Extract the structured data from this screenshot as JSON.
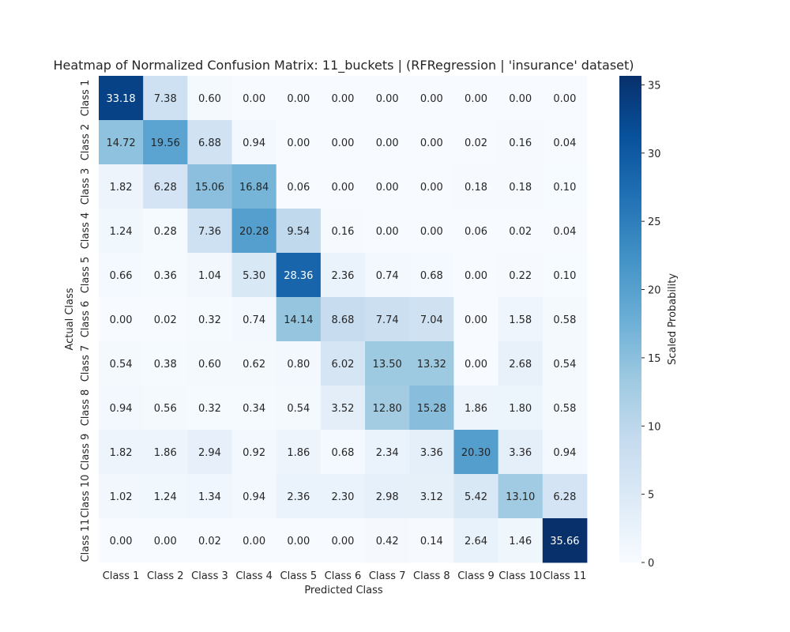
{
  "chart_data": {
    "type": "heatmap",
    "title": "Heatmap of Normalized Confusion Matrix: 11_buckets | (RFRegression | 'insurance' dataset)",
    "xlabel": "Predicted Class",
    "ylabel": "Actual Class",
    "colorbar_label": "Scaled Probability",
    "colorbar_ticks": [
      0,
      5,
      10,
      15,
      20,
      25,
      30,
      35
    ],
    "vmin": 0,
    "vmax": 35.66,
    "colormap": "Blues",
    "colormap_stops": [
      "#f7fbff",
      "#deebf7",
      "#c6dbef",
      "#9ecae1",
      "#6baed6",
      "#4292c6",
      "#2171b5",
      "#08519c",
      "#08306b"
    ],
    "x_categories": [
      "Class 1",
      "Class 2",
      "Class 3",
      "Class 4",
      "Class 5",
      "Class 6",
      "Class 7",
      "Class 8",
      "Class 9",
      "Class 10",
      "Class 11"
    ],
    "y_categories": [
      "Class 1",
      "Class 2",
      "Class 3",
      "Class 4",
      "Class 5",
      "Class 6",
      "Class 7",
      "Class 8",
      "Class 9",
      "Class 10",
      "Class 11"
    ],
    "values": [
      [
        33.18,
        7.38,
        0.6,
        0.0,
        0.0,
        0.0,
        0.0,
        0.0,
        0.0,
        0.0,
        0.0
      ],
      [
        14.72,
        19.56,
        6.88,
        0.94,
        0.0,
        0.0,
        0.0,
        0.0,
        0.02,
        0.16,
        0.04
      ],
      [
        1.82,
        6.28,
        15.06,
        16.84,
        0.06,
        0.0,
        0.0,
        0.0,
        0.18,
        0.18,
        0.1
      ],
      [
        1.24,
        0.28,
        7.36,
        20.28,
        9.54,
        0.16,
        0.0,
        0.0,
        0.06,
        0.02,
        0.04
      ],
      [
        0.66,
        0.36,
        1.04,
        5.3,
        28.36,
        2.36,
        0.74,
        0.68,
        0.0,
        0.22,
        0.1
      ],
      [
        0.0,
        0.02,
        0.32,
        0.74,
        14.14,
        8.68,
        7.74,
        7.04,
        0.0,
        1.58,
        0.58
      ],
      [
        0.54,
        0.38,
        0.6,
        0.62,
        0.8,
        6.02,
        13.5,
        13.32,
        0.0,
        2.68,
        0.54
      ],
      [
        0.94,
        0.56,
        0.32,
        0.34,
        0.54,
        3.52,
        12.8,
        15.28,
        1.86,
        1.8,
        0.58
      ],
      [
        1.82,
        1.86,
        2.94,
        0.92,
        1.86,
        0.68,
        2.34,
        3.36,
        20.3,
        3.36,
        0.94
      ],
      [
        1.02,
        1.24,
        1.34,
        0.94,
        2.36,
        2.3,
        2.98,
        3.12,
        5.42,
        13.1,
        6.28
      ],
      [
        0.0,
        0.0,
        0.02,
        0.0,
        0.0,
        0.0,
        0.42,
        0.14,
        2.64,
        1.46,
        35.66
      ]
    ]
  }
}
